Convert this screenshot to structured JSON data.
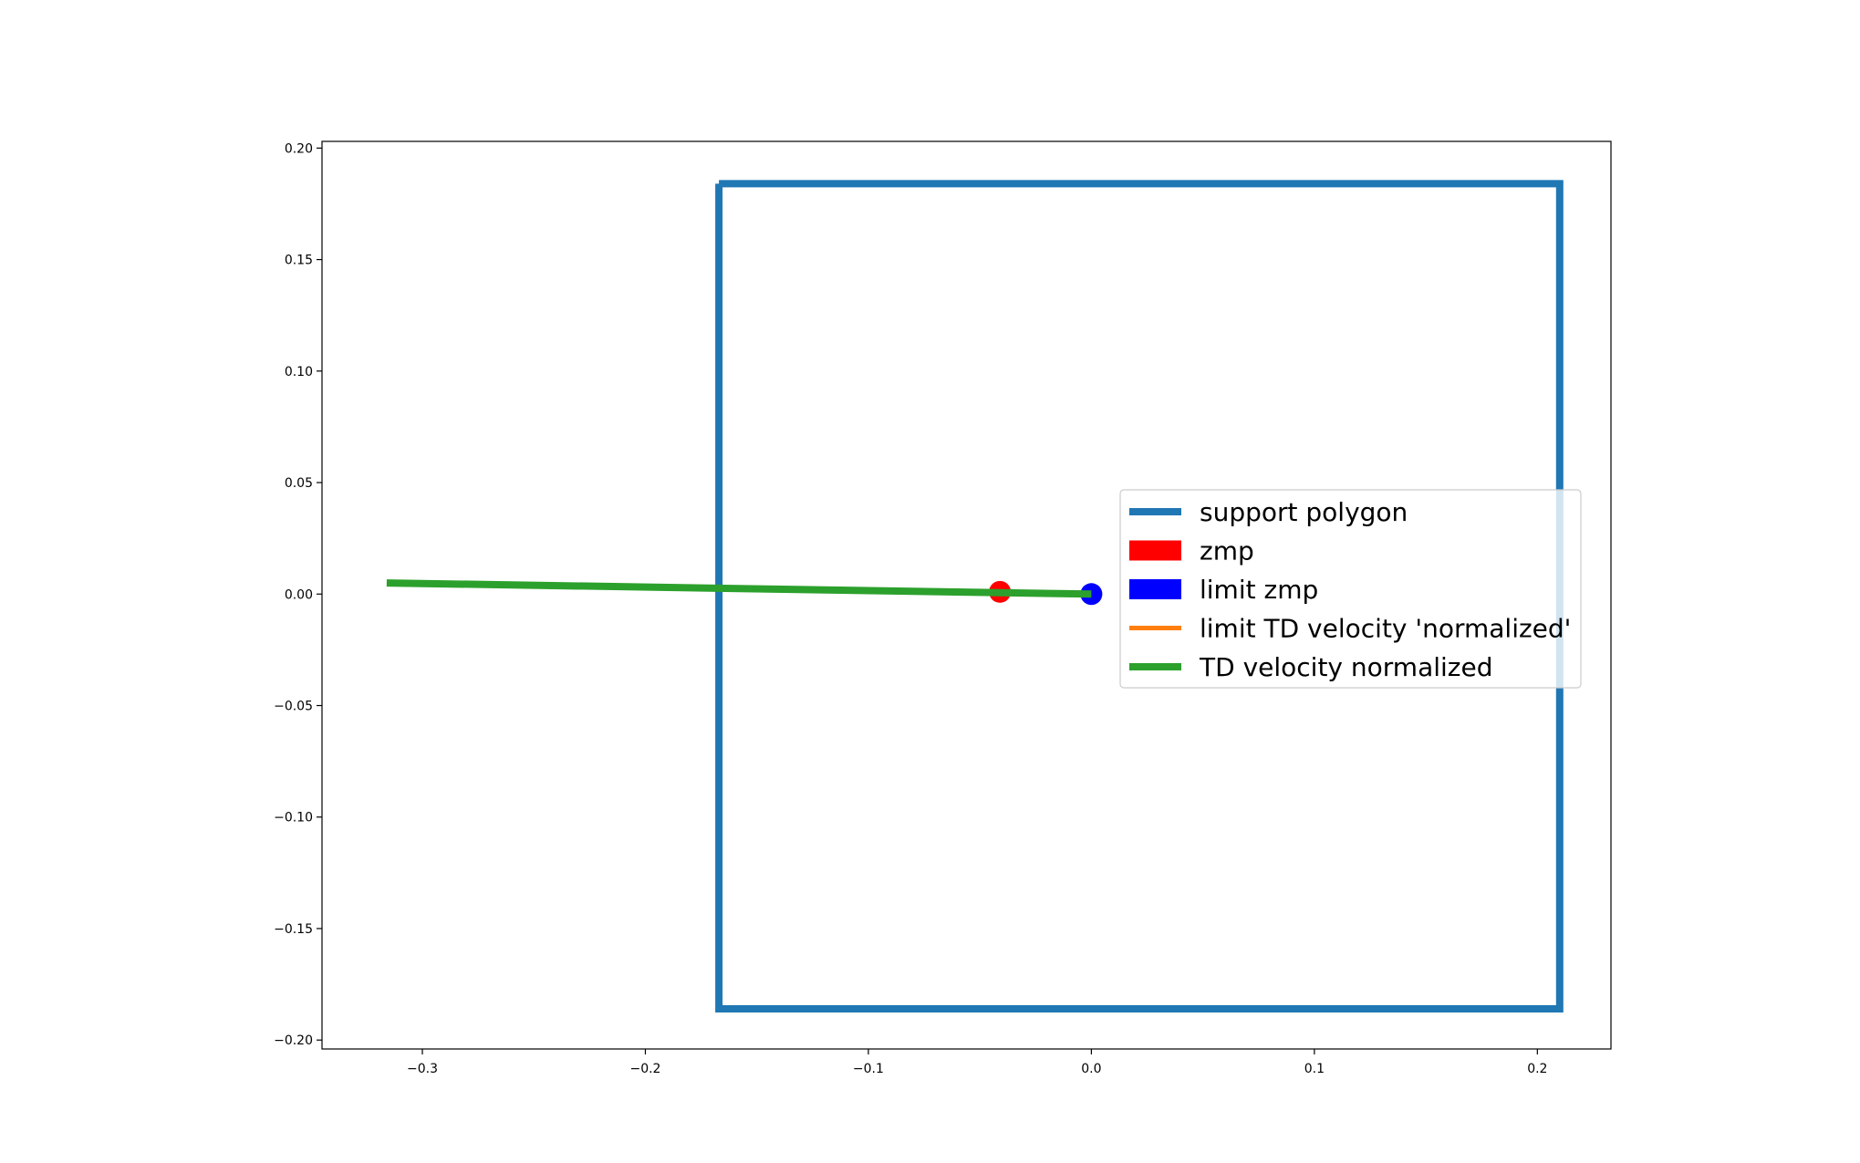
{
  "chart_data": {
    "type": "line",
    "title": "",
    "xlabel": "",
    "ylabel": "",
    "xlim": [
      -0.345,
      0.233
    ],
    "ylim": [
      -0.204,
      0.203
    ],
    "grid": false,
    "legend_placement": "center-right",
    "x_ticks": [
      {
        "value": -0.3,
        "label": "−0.3"
      },
      {
        "value": -0.2,
        "label": "−0.2"
      },
      {
        "value": -0.1,
        "label": "−0.1"
      },
      {
        "value": 0.0,
        "label": "0.0"
      },
      {
        "value": 0.1,
        "label": "0.1"
      },
      {
        "value": 0.2,
        "label": "0.2"
      }
    ],
    "y_ticks": [
      {
        "value": 0.2,
        "label": "0.20"
      },
      {
        "value": 0.15,
        "label": "0.15"
      },
      {
        "value": 0.1,
        "label": "0.10"
      },
      {
        "value": 0.05,
        "label": "0.05"
      },
      {
        "value": 0.0,
        "label": "0.00"
      },
      {
        "value": -0.05,
        "label": "−0.05"
      },
      {
        "value": -0.1,
        "label": "−0.10"
      },
      {
        "value": -0.15,
        "label": "−0.15"
      },
      {
        "value": -0.2,
        "label": "−0.20"
      }
    ],
    "series": [
      {
        "name": "support polygon",
        "kind": "line",
        "color": "#1f77b4",
        "points": [
          [
            -0.167,
            0.184
          ],
          [
            0.21,
            0.184
          ],
          [
            0.21,
            -0.186
          ],
          [
            -0.167,
            -0.186
          ],
          [
            -0.167,
            0.184
          ]
        ]
      },
      {
        "name": "zmp",
        "kind": "point",
        "color": "#ff0000",
        "points": [
          [
            -0.041,
            0.001
          ]
        ]
      },
      {
        "name": "limit zmp",
        "kind": "point",
        "color": "#0000ff",
        "points": [
          [
            0.0,
            0.0
          ]
        ]
      },
      {
        "name": "limit TD velocity 'normalized'",
        "kind": "line",
        "color": "#ff7f0e",
        "points": []
      },
      {
        "name": "TD velocity normalized",
        "kind": "line",
        "color": "#2ca02c",
        "points": [
          [
            -0.316,
            0.005
          ],
          [
            0.0,
            0.0
          ]
        ]
      }
    ]
  }
}
